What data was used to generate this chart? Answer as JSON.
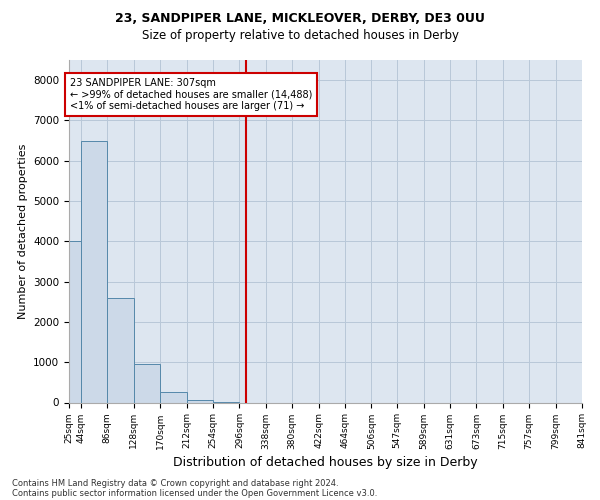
{
  "title_line1": "23, SANDPIPER LANE, MICKLEOVER, DERBY, DE3 0UU",
  "title_line2": "Size of property relative to detached houses in Derby",
  "xlabel": "Distribution of detached houses by size in Derby",
  "ylabel": "Number of detached properties",
  "footnote1": "Contains HM Land Registry data © Crown copyright and database right 2024.",
  "footnote2": "Contains public sector information licensed under the Open Government Licence v3.0.",
  "bar_color": "#ccd9e8",
  "bar_edge_color": "#5588aa",
  "grid_color": "#b8c8d8",
  "background_color": "#dde6f0",
  "bin_edges": [
    25,
    44,
    86,
    128,
    170,
    212,
    254,
    296,
    338,
    380,
    422,
    464,
    506,
    547,
    589,
    631,
    673,
    715,
    757,
    799,
    841
  ],
  "bar_heights": [
    4000,
    6500,
    2600,
    950,
    250,
    70,
    20,
    0,
    0,
    0,
    0,
    0,
    0,
    0,
    0,
    0,
    0,
    0,
    0,
    0
  ],
  "ylim": [
    0,
    8500
  ],
  "yticks": [
    0,
    1000,
    2000,
    3000,
    4000,
    5000,
    6000,
    7000,
    8000
  ],
  "property_line_x": 307,
  "property_line_color": "#cc0000",
  "annotation_box_text": "23 SANDPIPER LANE: 307sqm\n← >99% of detached houses are smaller (14,488)\n<1% of semi-detached houses are larger (71) →",
  "tick_labels": [
    "25sqm",
    "44sqm",
    "86sqm",
    "128sqm",
    "170sqm",
    "212sqm",
    "254sqm",
    "296sqm",
    "338sqm",
    "380sqm",
    "422sqm",
    "464sqm",
    "506sqm",
    "547sqm",
    "589sqm",
    "631sqm",
    "673sqm",
    "715sqm",
    "757sqm",
    "799sqm",
    "841sqm"
  ],
  "title1_fontsize": 9,
  "title2_fontsize": 8.5,
  "ylabel_fontsize": 8,
  "xlabel_fontsize": 9,
  "tick_fontsize": 6.5,
  "ytick_fontsize": 7.5,
  "footnote_fontsize": 6,
  "annot_fontsize": 7
}
